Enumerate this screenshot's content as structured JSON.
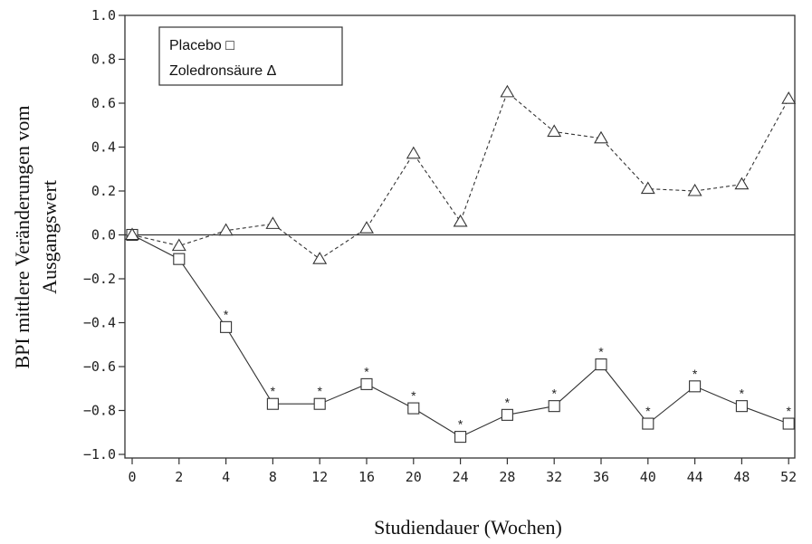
{
  "chart_data": {
    "type": "line",
    "xlabel": "Studiendauer (Wochen)",
    "ylabel_line1": "BPI mittlere Veränderungen vom",
    "ylabel_line2": "Ausgangswert",
    "categories": [
      "0",
      "2",
      "4",
      "8",
      "12",
      "16",
      "20",
      "24",
      "28",
      "32",
      "36",
      "40",
      "44",
      "48",
      "52"
    ],
    "ylim": [
      -1.0,
      1.0
    ],
    "yticks": [
      1.0,
      0.8,
      0.6,
      0.4,
      0.2,
      0.0,
      -0.2,
      -0.4,
      -0.6,
      -0.8,
      -1.0
    ],
    "ytick_labels": [
      "1.0",
      "0.8",
      "0.6",
      "0.4",
      "0.2",
      "0.0",
      "−0.2",
      "−0.4",
      "−0.6",
      "−0.8",
      "−1.0"
    ],
    "reference_line": 0.0,
    "grid": false,
    "legend_position": "top-left",
    "legend": [
      "Placebo □",
      "Zoledronsäure Δ"
    ],
    "series": [
      {
        "name": "Placebo",
        "marker": "square",
        "line_style": "solid",
        "values": [
          0.0,
          -0.11,
          -0.42,
          -0.77,
          -0.77,
          -0.68,
          -0.79,
          -0.92,
          -0.82,
          -0.78,
          -0.59,
          -0.86,
          -0.69,
          -0.78,
          -0.86
        ],
        "significant": [
          false,
          false,
          true,
          true,
          true,
          true,
          true,
          true,
          true,
          true,
          true,
          true,
          true,
          true,
          true
        ]
      },
      {
        "name": "Zoledronsäure",
        "marker": "triangle",
        "line_style": "dashed",
        "values": [
          0.0,
          -0.05,
          0.02,
          0.05,
          -0.11,
          0.03,
          0.37,
          0.06,
          0.65,
          0.47,
          0.44,
          0.21,
          0.2,
          0.23,
          0.62
        ]
      }
    ],
    "significance_marker": "*"
  }
}
